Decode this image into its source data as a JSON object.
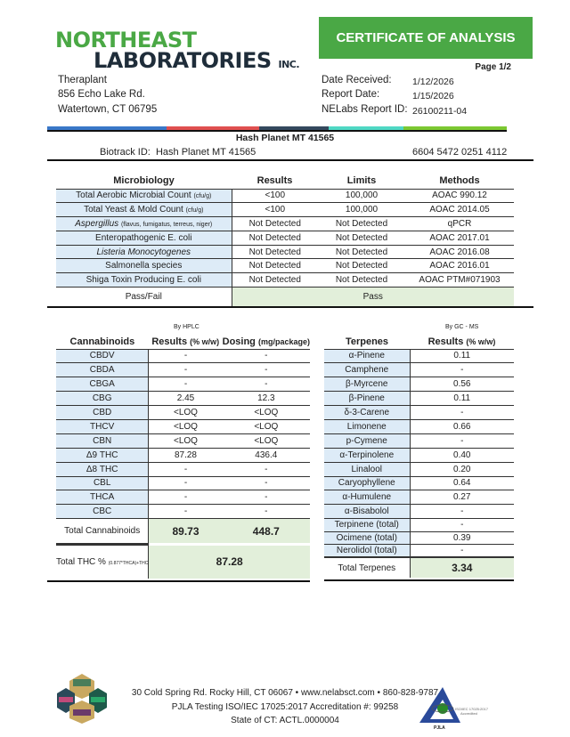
{
  "header": {
    "logo_line1": "NORTHEAST",
    "logo_line2": "LABORATORIES",
    "logo_suffix": "INC.",
    "banner": "CERTIFICATE OF ANALYSIS",
    "page": "Page 1/2"
  },
  "client": {
    "name": "Theraplant",
    "street": "856 Echo Lake Rd.",
    "city": "Watertown, CT 06795"
  },
  "report": {
    "date_received_label": "Date Received:",
    "date_received": "1/12/2026",
    "report_date_label": "Report Date:",
    "report_date": "1/15/2026",
    "report_id_label": "NELabs Report ID:",
    "report_id": "26100211-04"
  },
  "sample": {
    "title": "Hash Planet MT 41565",
    "biotrack_label": "Biotrack ID:",
    "biotrack_value": "Hash Planet MT 41565",
    "id_number": "6604 5472 0251 4112"
  },
  "colors": {
    "brand_green": "#4aa845",
    "row_blue": "#ddebf7",
    "result_green": "#e2efda",
    "bar": [
      "#3a78c8",
      "#e05050",
      "#34495e",
      "#4fd8c4",
      "#7cc832"
    ]
  },
  "micro": {
    "headers": [
      "Microbiology",
      "Results",
      "Limits",
      "Methods"
    ],
    "rows": [
      {
        "name": "Total Aerobic Microbial Count",
        "note": "(cfu/g)",
        "result": "<100",
        "limit": "100,000",
        "method": "AOAC 990.12"
      },
      {
        "name": "Total Yeast & Mold Count",
        "note": "(cfu/g)",
        "result": "<100",
        "limit": "100,000",
        "method": "AOAC 2014.05"
      },
      {
        "name": "Aspergillus",
        "note": "(flavus, fumigatus, terreus, niger)",
        "result": "Not Detected",
        "limit": "Not Detected",
        "method": "qPCR"
      },
      {
        "name": "Enteropathogenic E. coli",
        "note": "",
        "result": "Not Detected",
        "limit": "Not Detected",
        "method": "AOAC 2017.01"
      },
      {
        "name": "Listeria Monocytogenes",
        "note": "",
        "result": "Not Detected",
        "limit": "Not Detected",
        "method": "AOAC 2016.08"
      },
      {
        "name": "Salmonella species",
        "note": "",
        "result": "Not Detected",
        "limit": "Not Detected",
        "method": "AOAC 2016.01"
      },
      {
        "name": "Shiga Toxin Producing E. coli",
        "note": "",
        "result": "Not Detected",
        "limit": "Not Detected",
        "method": "AOAC PTM#071903"
      }
    ],
    "passfail_label": "Pass/Fail",
    "passfail": "Pass"
  },
  "cannabinoids": {
    "method": "By HPLC",
    "headers": [
      "Cannabinoids",
      "Results",
      "(% w/w)",
      "Dosing",
      "(mg/package)"
    ],
    "rows": [
      {
        "name": "CBDV",
        "result": "-",
        "dose": "-"
      },
      {
        "name": "CBDA",
        "result": "-",
        "dose": "-"
      },
      {
        "name": "CBGA",
        "result": "-",
        "dose": "-"
      },
      {
        "name": "CBG",
        "result": "2.45",
        "dose": "12.3"
      },
      {
        "name": "CBD",
        "result": "<LOQ",
        "dose": "<LOQ"
      },
      {
        "name": "THCV",
        "result": "<LOQ",
        "dose": "<LOQ"
      },
      {
        "name": "CBN",
        "result": "<LOQ",
        "dose": "<LOQ"
      },
      {
        "name": "Δ9 THC",
        "result": "87.28",
        "dose": "436.4"
      },
      {
        "name": "Δ8 THC",
        "result": "-",
        "dose": "-"
      },
      {
        "name": "CBL",
        "result": "-",
        "dose": "-"
      },
      {
        "name": "THCA",
        "result": "-",
        "dose": "-"
      },
      {
        "name": "CBC",
        "result": "-",
        "dose": "-"
      }
    ],
    "total_label": "Total Cannabinoids",
    "total_result": "89.73",
    "total_dose": "448.7",
    "thc_label": "Total THC %",
    "thc_formula": "(0.877*THCA)+THC",
    "thc_value": "87.28"
  },
  "terpenes": {
    "method": "By GC - MS",
    "headers": [
      "Terpenes",
      "Results",
      "(% w/w)"
    ],
    "rows": [
      {
        "name": "α-Pinene",
        "result": "0.11"
      },
      {
        "name": "Camphene",
        "result": "-"
      },
      {
        "name": "β-Myrcene",
        "result": "0.56"
      },
      {
        "name": "β-Pinene",
        "result": "0.11"
      },
      {
        "name": "δ-3-Carene",
        "result": "-"
      },
      {
        "name": "Limonene",
        "result": "0.66"
      },
      {
        "name": "p-Cymene",
        "result": "-"
      },
      {
        "name": "α-Terpinolene",
        "result": "0.40"
      },
      {
        "name": "Linalool",
        "result": "0.20"
      },
      {
        "name": "Caryophyllene",
        "result": "0.64"
      },
      {
        "name": "α-Humulene",
        "result": "0.27"
      },
      {
        "name": "α-Bisabolol",
        "result": "-"
      },
      {
        "name": "Terpinene (total)",
        "result": "-"
      },
      {
        "name": "Ocimene (total)",
        "result": "0.39"
      },
      {
        "name": "Nerolidol (total)",
        "result": "-"
      }
    ],
    "total_label": "Total Terpenes",
    "total": "3.34"
  },
  "footer": {
    "line1": "30 Cold Spring Rd. Rocky Hill, CT 06067  •  www.nelabsct.com  •  860-828-9787",
    "line2": "PJLA Testing ISO/IEC 17025:2017 Accreditation #: 99258",
    "line3": "State of CT: ACTL.0000004",
    "pjla": "PJLA",
    "iso": "ISO/IEC 17025:2017 Accredited"
  }
}
